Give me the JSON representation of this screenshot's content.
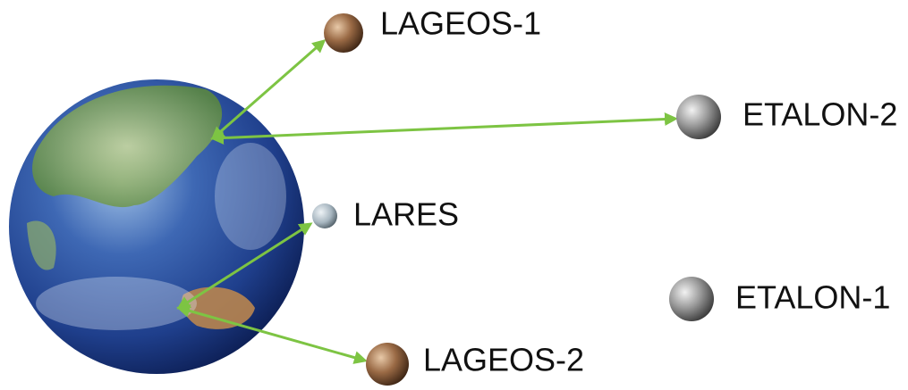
{
  "nodes": [
    {
      "label": "LAGEOS-1"
    },
    {
      "label": "ETALON-2"
    },
    {
      "label": "LARES"
    },
    {
      "label": "ETALON-1"
    },
    {
      "label": "LAGEOS-2"
    }
  ]
}
